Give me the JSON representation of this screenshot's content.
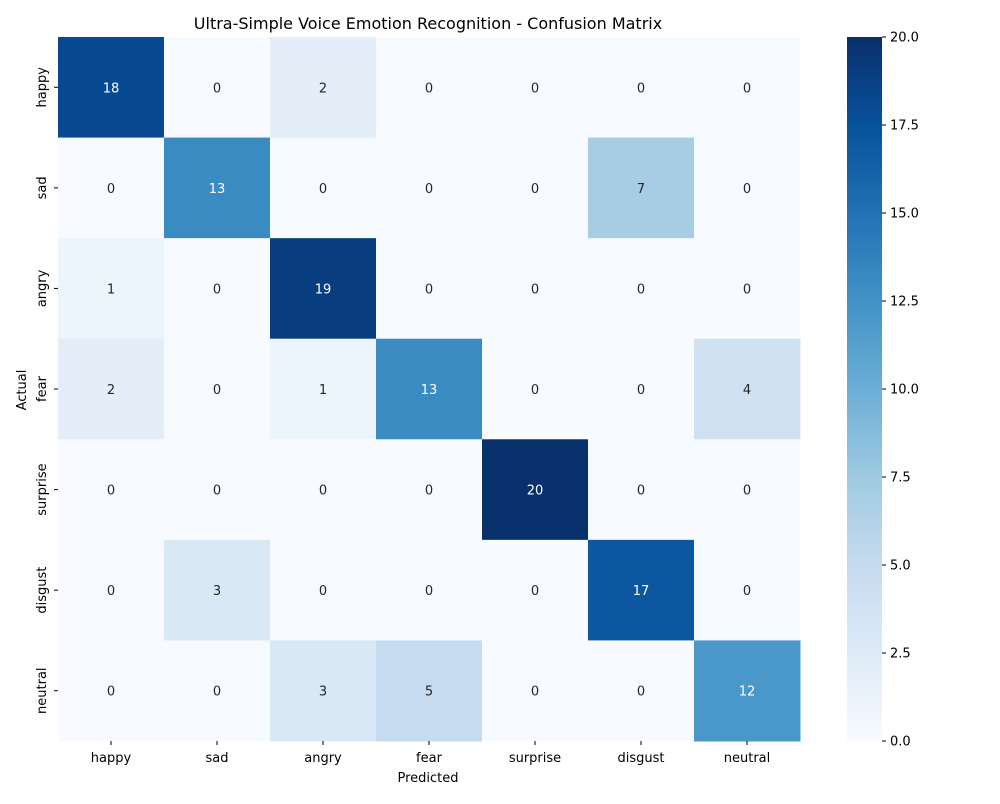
{
  "chart_data": {
    "type": "heatmap",
    "title": "Ultra-Simple Voice Emotion Recognition - Confusion Matrix",
    "xlabel": "Predicted",
    "ylabel": "Actual",
    "x_categories": [
      "happy",
      "sad",
      "angry",
      "fear",
      "surprise",
      "disgust",
      "neutral"
    ],
    "y_categories": [
      "happy",
      "sad",
      "angry",
      "fear",
      "surprise",
      "disgust",
      "neutral"
    ],
    "matrix": [
      [
        18,
        0,
        2,
        0,
        0,
        0,
        0
      ],
      [
        0,
        13,
        0,
        0,
        0,
        7,
        0
      ],
      [
        1,
        0,
        19,
        0,
        0,
        0,
        0
      ],
      [
        2,
        0,
        1,
        13,
        0,
        0,
        4
      ],
      [
        0,
        0,
        0,
        0,
        20,
        0,
        0
      ],
      [
        0,
        3,
        0,
        0,
        0,
        17,
        0
      ],
      [
        0,
        0,
        3,
        5,
        0,
        0,
        12
      ]
    ],
    "colormap": "Blues",
    "vmin": 0,
    "vmax": 20,
    "colorbar_ticks": [
      "0.0",
      "2.5",
      "5.0",
      "7.5",
      "10.0",
      "12.5",
      "15.0",
      "17.5",
      "20.0"
    ]
  }
}
